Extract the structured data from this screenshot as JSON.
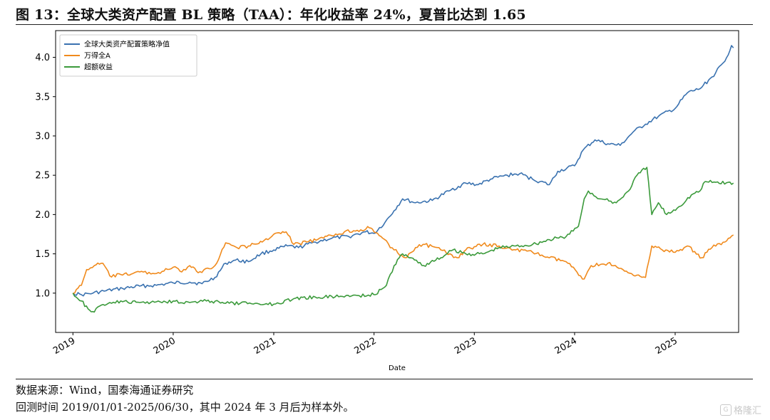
{
  "figure": {
    "title": "图 13：全球大类资产配置 BL 策略（TAA）：年化收益率 24%，夏普比达到 1.65",
    "source_note": "数据来源：Wind，国泰海通证券研究",
    "backtest_note": "回测时间 2019/01/01-2025/06/30，其中 2024 年 3 月后为样本外。",
    "watermark": "格隆汇"
  },
  "colors": {
    "series_1": "#3a72b0",
    "series_2": "#f08a1c",
    "series_3": "#3b9a3b"
  },
  "chart_data": {
    "type": "line",
    "title": "",
    "xlabel": "Date",
    "ylabel": "",
    "x_range": [
      "2018-10-30",
      "2025-08-20"
    ],
    "ylim": [
      0.5,
      4.34
    ],
    "x_ticks": [
      "2019",
      "2020",
      "2021",
      "2022",
      "2023",
      "2024",
      "2025"
    ],
    "y_ticks": [
      "1.0",
      "1.5",
      "2.0",
      "2.5",
      "3.0",
      "3.5",
      "4.0"
    ],
    "grid": false,
    "legend_position": "top-left",
    "series": [
      {
        "name": "全球大类资产配置策略净值",
        "color": "#3a72b0",
        "points": [
          [
            "2019-01-01",
            1.0
          ],
          [
            "2019-02-01",
            0.98
          ],
          [
            "2019-03-15",
            1.0
          ],
          [
            "2019-05-01",
            1.03
          ],
          [
            "2019-07-01",
            1.06
          ],
          [
            "2019-09-01",
            1.09
          ],
          [
            "2019-11-01",
            1.1
          ],
          [
            "2020-01-01",
            1.13
          ],
          [
            "2020-03-01",
            1.14
          ],
          [
            "2020-04-15",
            1.12
          ],
          [
            "2020-06-01",
            1.2
          ],
          [
            "2020-07-10",
            1.38
          ],
          [
            "2020-08-15",
            1.42
          ],
          [
            "2020-10-01",
            1.4
          ],
          [
            "2020-11-15",
            1.5
          ],
          [
            "2021-01-01",
            1.55
          ],
          [
            "2021-02-20",
            1.6
          ],
          [
            "2021-04-01",
            1.58
          ],
          [
            "2021-06-01",
            1.65
          ],
          [
            "2021-08-01",
            1.7
          ],
          [
            "2021-10-01",
            1.72
          ],
          [
            "2021-12-01",
            1.78
          ],
          [
            "2022-01-01",
            1.76
          ],
          [
            "2022-02-10",
            1.9
          ],
          [
            "2022-03-15",
            2.05
          ],
          [
            "2022-04-15",
            2.2
          ],
          [
            "2022-06-01",
            2.15
          ],
          [
            "2022-08-01",
            2.18
          ],
          [
            "2022-10-01",
            2.3
          ],
          [
            "2022-12-01",
            2.4
          ],
          [
            "2023-01-15",
            2.38
          ],
          [
            "2023-03-01",
            2.45
          ],
          [
            "2023-05-01",
            2.5
          ],
          [
            "2023-06-15",
            2.52
          ],
          [
            "2023-08-01",
            2.45
          ],
          [
            "2023-10-01",
            2.38
          ],
          [
            "2023-11-01",
            2.55
          ],
          [
            "2024-01-01",
            2.62
          ],
          [
            "2024-02-01",
            2.82
          ],
          [
            "2024-03-15",
            2.95
          ],
          [
            "2024-05-01",
            2.9
          ],
          [
            "2024-06-15",
            2.88
          ],
          [
            "2024-08-01",
            3.05
          ],
          [
            "2024-09-15",
            3.15
          ],
          [
            "2024-11-01",
            3.25
          ],
          [
            "2025-01-01",
            3.35
          ],
          [
            "2025-02-15",
            3.55
          ],
          [
            "2025-04-01",
            3.6
          ],
          [
            "2025-05-15",
            3.75
          ],
          [
            "2025-07-01",
            3.95
          ],
          [
            "2025-07-25",
            4.15
          ],
          [
            "2025-08-01",
            4.12
          ]
        ]
      },
      {
        "name": "万得全A",
        "color": "#f08a1c",
        "points": [
          [
            "2019-01-01",
            1.0
          ],
          [
            "2019-02-01",
            1.1
          ],
          [
            "2019-02-20",
            1.3
          ],
          [
            "2019-03-20",
            1.35
          ],
          [
            "2019-04-20",
            1.38
          ],
          [
            "2019-05-15",
            1.22
          ],
          [
            "2019-07-01",
            1.23
          ],
          [
            "2019-09-01",
            1.27
          ],
          [
            "2019-11-01",
            1.25
          ],
          [
            "2020-01-01",
            1.33
          ],
          [
            "2020-02-01",
            1.27
          ],
          [
            "2020-03-01",
            1.35
          ],
          [
            "2020-04-01",
            1.26
          ],
          [
            "2020-06-01",
            1.35
          ],
          [
            "2020-07-10",
            1.64
          ],
          [
            "2020-08-20",
            1.58
          ],
          [
            "2020-10-01",
            1.6
          ],
          [
            "2020-11-20",
            1.65
          ],
          [
            "2021-01-01",
            1.75
          ],
          [
            "2021-02-15",
            1.78
          ],
          [
            "2021-03-15",
            1.62
          ],
          [
            "2021-05-01",
            1.65
          ],
          [
            "2021-07-01",
            1.7
          ],
          [
            "2021-09-15",
            1.78
          ],
          [
            "2021-11-01",
            1.8
          ],
          [
            "2021-12-15",
            1.83
          ],
          [
            "2022-01-01",
            1.78
          ],
          [
            "2022-02-01",
            1.7
          ],
          [
            "2022-03-15",
            1.55
          ],
          [
            "2022-04-25",
            1.45
          ],
          [
            "2022-06-01",
            1.58
          ],
          [
            "2022-07-05",
            1.62
          ],
          [
            "2022-09-01",
            1.55
          ],
          [
            "2022-10-31",
            1.45
          ],
          [
            "2022-12-01",
            1.55
          ],
          [
            "2023-02-01",
            1.62
          ],
          [
            "2023-04-01",
            1.6
          ],
          [
            "2023-06-01",
            1.55
          ],
          [
            "2023-08-01",
            1.52
          ],
          [
            "2023-10-01",
            1.45
          ],
          [
            "2023-12-01",
            1.4
          ],
          [
            "2024-02-05",
            1.18
          ],
          [
            "2024-03-01",
            1.35
          ],
          [
            "2024-05-01",
            1.38
          ],
          [
            "2024-07-01",
            1.28
          ],
          [
            "2024-09-15",
            1.2
          ],
          [
            "2024-10-08",
            1.6
          ],
          [
            "2024-11-15",
            1.55
          ],
          [
            "2025-01-01",
            1.52
          ],
          [
            "2025-02-15",
            1.6
          ],
          [
            "2025-04-08",
            1.45
          ],
          [
            "2025-05-15",
            1.58
          ],
          [
            "2025-07-01",
            1.65
          ],
          [
            "2025-08-01",
            1.74
          ]
        ]
      },
      {
        "name": "超额收益",
        "color": "#3b9a3b",
        "points": [
          [
            "2019-01-01",
            1.0
          ],
          [
            "2019-02-01",
            0.9
          ],
          [
            "2019-02-25",
            0.8
          ],
          [
            "2019-03-20",
            0.76
          ],
          [
            "2019-04-15",
            0.85
          ],
          [
            "2019-05-15",
            0.88
          ],
          [
            "2019-07-01",
            0.89
          ],
          [
            "2019-09-01",
            0.88
          ],
          [
            "2019-11-01",
            0.89
          ],
          [
            "2020-01-01",
            0.9
          ],
          [
            "2020-03-01",
            0.88
          ],
          [
            "2020-05-01",
            0.9
          ],
          [
            "2020-06-15",
            0.89
          ],
          [
            "2020-07-10",
            0.87
          ],
          [
            "2020-09-01",
            0.87
          ],
          [
            "2020-11-01",
            0.87
          ],
          [
            "2021-01-01",
            0.86
          ],
          [
            "2021-03-15",
            0.93
          ],
          [
            "2021-06-01",
            0.95
          ],
          [
            "2021-09-01",
            0.96
          ],
          [
            "2021-11-01",
            0.97
          ],
          [
            "2022-01-01",
            0.98
          ],
          [
            "2022-02-15",
            1.1
          ],
          [
            "2022-03-15",
            1.35
          ],
          [
            "2022-04-15",
            1.5
          ],
          [
            "2022-05-15",
            1.45
          ],
          [
            "2022-07-01",
            1.35
          ],
          [
            "2022-09-01",
            1.45
          ],
          [
            "2022-10-15",
            1.55
          ],
          [
            "2022-12-01",
            1.5
          ],
          [
            "2023-02-01",
            1.5
          ],
          [
            "2023-04-01",
            1.58
          ],
          [
            "2023-06-01",
            1.6
          ],
          [
            "2023-08-01",
            1.62
          ],
          [
            "2023-10-01",
            1.68
          ],
          [
            "2023-12-01",
            1.72
          ],
          [
            "2024-01-15",
            1.85
          ],
          [
            "2024-02-05",
            2.2
          ],
          [
            "2024-02-20",
            2.3
          ],
          [
            "2024-04-01",
            2.2
          ],
          [
            "2024-06-01",
            2.15
          ],
          [
            "2024-07-15",
            2.3
          ],
          [
            "2024-08-15",
            2.5
          ],
          [
            "2024-09-20",
            2.6
          ],
          [
            "2024-10-08",
            2.0
          ],
          [
            "2024-11-01",
            2.15
          ],
          [
            "2024-12-01",
            2.0
          ],
          [
            "2025-01-15",
            2.1
          ],
          [
            "2025-03-01",
            2.25
          ],
          [
            "2025-04-01",
            2.3
          ],
          [
            "2025-04-20",
            2.42
          ],
          [
            "2025-08-01",
            2.4
          ]
        ]
      }
    ]
  }
}
